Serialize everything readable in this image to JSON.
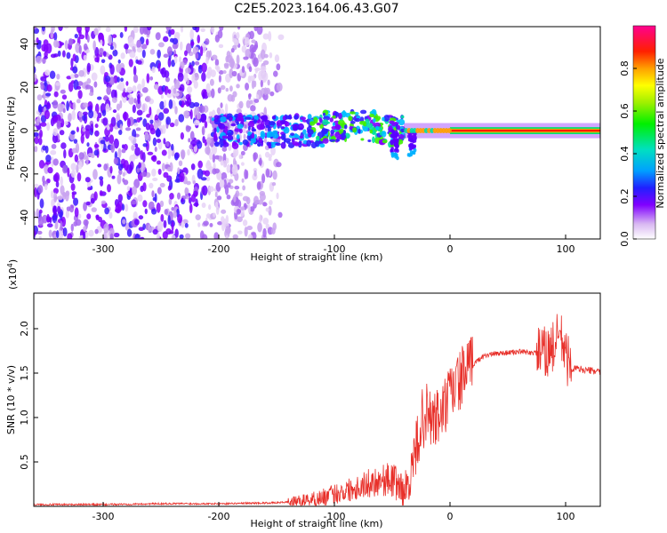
{
  "figure": {
    "title": "C2E5.2023.164.06.43.G07"
  },
  "colors": {
    "snr_line": "#e8302a",
    "frame": "#000000"
  },
  "chart_data": [
    {
      "type": "heatmap",
      "xlabel": "Height of straight line (km)",
      "ylabel": "Frequency (Hz)",
      "xlim": [
        -360,
        130
      ],
      "ylim": [
        -50,
        48
      ],
      "x_ticks": [
        -300,
        -200,
        -100,
        0,
        100
      ],
      "y_ticks": [
        -40,
        -20,
        0,
        20,
        40
      ],
      "colorbar": {
        "label": "Normalized spectral amplitude",
        "range": [
          0,
          1
        ],
        "ticks": [
          0.0,
          0.2,
          0.4,
          0.6,
          0.8
        ],
        "colormap": "rainbow"
      }
    },
    {
      "type": "line",
      "xlabel": "Height of straight line (km)",
      "ylabel": "SNR (10 * v/v)",
      "scale_label": "(x10",
      "scale_exp": "4",
      "scale_close": ")",
      "xlim": [
        -360,
        130
      ],
      "ylim": [
        0,
        2.4
      ],
      "x_ticks": [
        -300,
        -200,
        -100,
        0,
        100
      ],
      "y_ticks": [
        0.5,
        1.0,
        1.5,
        2.0
      ],
      "series": [
        {
          "x": [
            -360,
            -300,
            -250,
            -200,
            -150,
            -130,
            -110,
            -100,
            -90,
            -80,
            -70,
            -60,
            -50,
            -45,
            -40,
            -35,
            -30,
            -25,
            -20,
            -15,
            -10,
            -5,
            0,
            10,
            20,
            30,
            40,
            50,
            60,
            70,
            80,
            85,
            90,
            95,
            100,
            105,
            110,
            120,
            130
          ],
          "y": [
            0.02,
            0.02,
            0.03,
            0.03,
            0.04,
            0.06,
            0.1,
            0.14,
            0.18,
            0.22,
            0.26,
            0.3,
            0.3,
            0.25,
            0.15,
            0.3,
            0.6,
            0.95,
            1.05,
            0.95,
            1.0,
            1.1,
            1.25,
            1.45,
            1.6,
            1.7,
            1.72,
            1.73,
            1.74,
            1.73,
            1.72,
            1.75,
            1.8,
            1.95,
            1.7,
            1.55,
            1.55,
            1.53,
            1.52
          ]
        }
      ]
    }
  ]
}
